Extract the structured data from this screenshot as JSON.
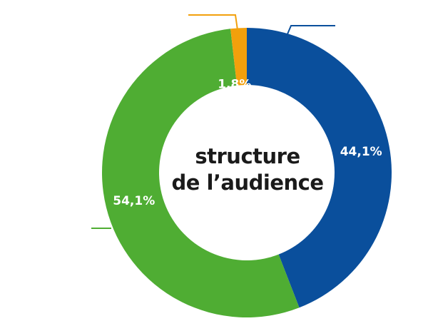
{
  "chart_data": {
    "type": "pie",
    "title": [
      "structure",
      "de l’audience"
    ],
    "slices": [
      {
        "label": "44,1%",
        "value": 44.1,
        "color": "#0a4f9c"
      },
      {
        "label": "54,1%",
        "value": 54.1,
        "color": "#4fad33"
      },
      {
        "label": "1,8%",
        "value": 1.8,
        "color": "#f2a00c"
      }
    ],
    "start": "top",
    "direction": "clockwise",
    "donut": true
  }
}
